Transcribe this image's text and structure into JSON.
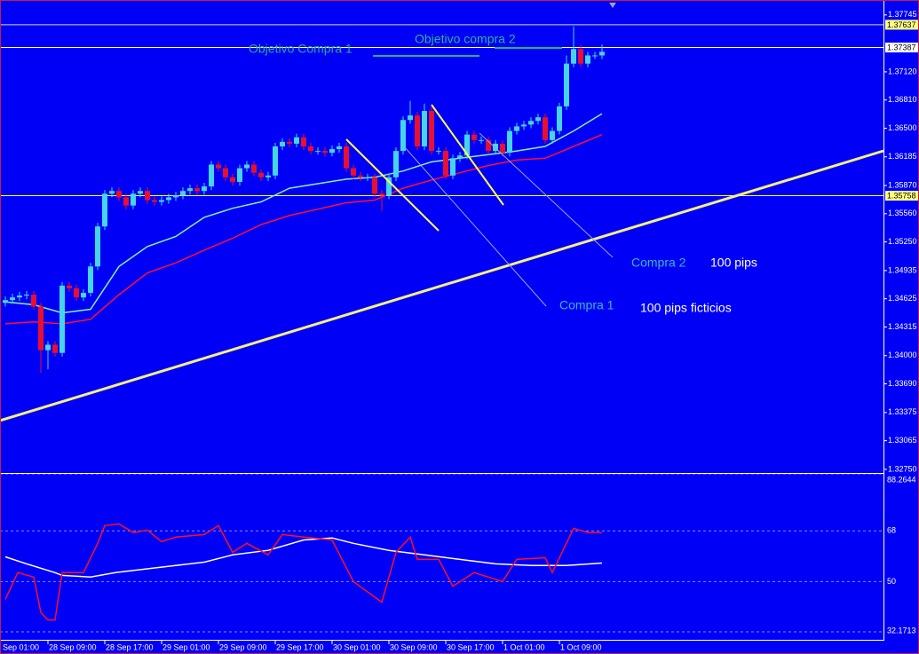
{
  "chart_data": [
    {
      "type": "candlestick",
      "xlim": [
        -0.75,
        123.625
      ],
      "ylim": [
        1.3272,
        1.3788
      ],
      "yticks": [
        1.37745,
        {
          "value": 1.3712,
          "label": "1.37120"
        },
        {
          "value": 1.3681,
          "label": "1.36810"
        },
        {
          "value": 1.365,
          "label": "1.36500"
        },
        1.36185,
        {
          "value": 1.3587,
          "label": "1.35870"
        },
        {
          "value": 1.3556,
          "label": "1.35560"
        },
        {
          "value": 1.3525,
          "label": "1.35250"
        },
        1.34935,
        1.34625,
        1.34315,
        {
          "value": 1.34,
          "label": "1.34000"
        },
        {
          "value": 1.3369,
          "label": "1.33690"
        },
        1.33375,
        1.33065,
        {
          "value": 1.3275,
          "label": "1.32750"
        }
      ],
      "xticks": [
        {
          "value": -2,
          "label": "Sep 01:00"
        },
        {
          "value": 6,
          "label": "28 Sep 09:00"
        },
        {
          "value": 14,
          "label": "28 Sep 17:00"
        },
        {
          "value": 22,
          "label": "29 Sep 01:00"
        },
        {
          "value": 30,
          "label": "29 Sep 09:00"
        },
        {
          "value": 38,
          "label": "29 Sep 17:00"
        },
        {
          "value": 46,
          "label": "30 Sep 01:00"
        },
        {
          "value": 54,
          "label": "30 Sep 09:00"
        },
        {
          "value": 62,
          "label": "30 Sep 17:00"
        },
        {
          "value": 70,
          "label": "1 Oct 01:00"
        },
        {
          "value": 78,
          "label": "1 Oct 09:00"
        }
      ],
      "up_color": "#46d4ec",
      "down_color": "#e8102e",
      "x": [
        0,
        1,
        2,
        3,
        4,
        5,
        6,
        7,
        8,
        9,
        10,
        11,
        12,
        13,
        14,
        15,
        16,
        17,
        18,
        19,
        20,
        21,
        22,
        23,
        24,
        25,
        26,
        27,
        28,
        29,
        30,
        31,
        32,
        33,
        34,
        35,
        36,
        37,
        38,
        39,
        40,
        41,
        42,
        43,
        44,
        45,
        46,
        47,
        48,
        49,
        50,
        51,
        52,
        53,
        54,
        55,
        56,
        57,
        58,
        59,
        60,
        61,
        62,
        63,
        64,
        65,
        66,
        67,
        68,
        69,
        70,
        71,
        72,
        73,
        74,
        75,
        76,
        77,
        78,
        79,
        80,
        81,
        82,
        83,
        84
      ],
      "open": [
        1.3458,
        1.3461,
        1.3464,
        1.3466,
        1.3467,
        1.3454,
        1.3406,
        1.3412,
        1.3403,
        1.3477,
        1.3474,
        1.3464,
        1.3469,
        1.3498,
        1.3542,
        1.3578,
        1.3581,
        1.3574,
        1.3565,
        1.3578,
        1.3581,
        1.3571,
        1.3569,
        1.3571,
        1.3574,
        1.3576,
        1.3581,
        1.3584,
        1.3581,
        1.3586,
        1.361,
        1.3606,
        1.3596,
        1.3591,
        1.3606,
        1.361,
        1.3601,
        1.3596,
        1.3598,
        1.363,
        1.3635,
        1.3633,
        1.364,
        1.363,
        1.3625,
        1.3625,
        1.3623,
        1.3627,
        1.363,
        1.3606,
        1.3598,
        1.3596,
        1.3596,
        1.3578,
        1.3576,
        1.3596,
        1.3625,
        1.3659,
        1.3664,
        1.363,
        1.3669,
        1.3625,
        1.3625,
        1.3598,
        1.3617,
        1.362,
        1.3643,
        1.3637,
        1.3637,
        1.3625,
        1.3633,
        1.3623,
        1.3647,
        1.3652,
        1.3654,
        1.3658,
        1.3662,
        1.3637,
        1.3647,
        1.3674,
        1.3721,
        1.3737,
        1.3721,
        1.373,
        1.373
      ],
      "high": [
        1.3465,
        1.3468,
        1.347,
        1.3471,
        1.3471,
        1.3458,
        1.3416,
        1.3416,
        1.3481,
        1.3481,
        1.3478,
        1.3473,
        1.3502,
        1.3546,
        1.3582,
        1.3585,
        1.3585,
        1.3578,
        1.3582,
        1.3585,
        1.3585,
        1.3575,
        1.3575,
        1.3578,
        1.358,
        1.3585,
        1.3588,
        1.3588,
        1.359,
        1.3614,
        1.3614,
        1.361,
        1.36,
        1.361,
        1.3614,
        1.3614,
        1.3605,
        1.3602,
        1.3634,
        1.3639,
        1.3639,
        1.3644,
        1.3644,
        1.3634,
        1.3629,
        1.3629,
        1.3631,
        1.3634,
        1.3634,
        1.361,
        1.3602,
        1.36,
        1.36,
        1.3582,
        1.36,
        1.3629,
        1.3663,
        1.368,
        1.3668,
        1.3677,
        1.3673,
        1.3629,
        1.3629,
        1.3621,
        1.3624,
        1.3647,
        1.3647,
        1.3641,
        1.3641,
        1.3637,
        1.3637,
        1.3651,
        1.3656,
        1.3658,
        1.3662,
        1.3666,
        1.3666,
        1.3651,
        1.3678,
        1.373,
        1.3762,
        1.3741,
        1.3734,
        1.3734,
        1.3742
      ],
      "low": [
        1.3454,
        1.3457,
        1.346,
        1.3462,
        1.345,
        1.3381,
        1.3385,
        1.3399,
        1.3399,
        1.347,
        1.346,
        1.346,
        1.3465,
        1.3494,
        1.3538,
        1.3574,
        1.357,
        1.3561,
        1.3561,
        1.3574,
        1.3567,
        1.3565,
        1.3565,
        1.3567,
        1.357,
        1.3572,
        1.3577,
        1.3577,
        1.3577,
        1.3582,
        1.3602,
        1.3592,
        1.3587,
        1.3587,
        1.3602,
        1.3597,
        1.3592,
        1.3592,
        1.3594,
        1.3626,
        1.3629,
        1.3629,
        1.3626,
        1.3621,
        1.3621,
        1.3619,
        1.3619,
        1.3623,
        1.3602,
        1.3594,
        1.3592,
        1.3592,
        1.3574,
        1.3559,
        1.3572,
        1.3592,
        1.3621,
        1.3655,
        1.3626,
        1.3626,
        1.3621,
        1.3621,
        1.3594,
        1.3594,
        1.3613,
        1.3616,
        1.3633,
        1.3633,
        1.3621,
        1.3621,
        1.3619,
        1.3619,
        1.3643,
        1.3648,
        1.365,
        1.3654,
        1.3633,
        1.3633,
        1.3643,
        1.367,
        1.3717,
        1.3717,
        1.3717,
        1.3726,
        1.3726
      ],
      "close": [
        1.3461,
        1.3464,
        1.3466,
        1.3467,
        1.3454,
        1.3406,
        1.3412,
        1.3403,
        1.3477,
        1.3474,
        1.3464,
        1.3469,
        1.3498,
        1.3542,
        1.3578,
        1.3581,
        1.3574,
        1.3565,
        1.3578,
        1.3581,
        1.3571,
        1.3569,
        1.3571,
        1.3574,
        1.3576,
        1.3581,
        1.3584,
        1.3581,
        1.3586,
        1.361,
        1.3606,
        1.3596,
        1.3591,
        1.3606,
        1.361,
        1.3601,
        1.3596,
        1.3598,
        1.363,
        1.3635,
        1.3633,
        1.364,
        1.363,
        1.3625,
        1.3625,
        1.3623,
        1.3627,
        1.363,
        1.3606,
        1.3598,
        1.3596,
        1.3596,
        1.3578,
        1.3576,
        1.3596,
        1.3625,
        1.3659,
        1.3664,
        1.363,
        1.3669,
        1.3625,
        1.3625,
        1.3598,
        1.3617,
        1.362,
        1.3643,
        1.3637,
        1.3637,
        1.3625,
        1.3633,
        1.3623,
        1.3647,
        1.3652,
        1.3654,
        1.3658,
        1.3662,
        1.3637,
        1.3647,
        1.3674,
        1.3721,
        1.3737,
        1.3721,
        1.373,
        1.373,
        1.3734
      ],
      "lines": [
        {
          "color": "#8cf0b4",
          "x": [
            0,
            4,
            8,
            12,
            16,
            20,
            24,
            28,
            32,
            36,
            40,
            44,
            48,
            52,
            56,
            60,
            64,
            68,
            72,
            76,
            80,
            84
          ],
          "values": [
            1.3459,
            1.3456,
            1.3447,
            1.3451,
            1.3498,
            1.352,
            1.3531,
            1.3552,
            1.3562,
            1.3569,
            1.3584,
            1.3589,
            1.3594,
            1.3596,
            1.3603,
            1.3613,
            1.3617,
            1.3621,
            1.3625,
            1.363,
            1.3647,
            1.3666
          ]
        },
        {
          "color": "#ff1030",
          "x": [
            0,
            4,
            8,
            12,
            16,
            20,
            24,
            28,
            32,
            36,
            40,
            44,
            48,
            52,
            56,
            60,
            64,
            68,
            72,
            76,
            80,
            84
          ],
          "values": [
            1.3435,
            1.3437,
            1.3435,
            1.344,
            1.3467,
            1.3491,
            1.3502,
            1.3516,
            1.3529,
            1.3544,
            1.3554,
            1.3561,
            1.3568,
            1.3571,
            1.3584,
            1.3593,
            1.3601,
            1.3609,
            1.3615,
            1.3617,
            1.363,
            1.3643
          ]
        }
      ],
      "price_lines": [
        {
          "value": 1.37637,
          "color": "#d8d8e8",
          "label_color": "#ffff80"
        },
        {
          "value": 1.37387,
          "color": "#ffffff",
          "label_color": "#ffffff"
        },
        {
          "value": 1.35758,
          "color": "#ffff40",
          "label_color": "#ffff80"
        }
      ],
      "annotations": [
        "Objetivo Compra 1",
        "Objetivo compra 2",
        "Compra 2",
        "100 pips",
        "Compra 1",
        "100 pips ficticios"
      ]
    },
    {
      "type": "line",
      "xlim": [
        -0.75,
        123.625
      ],
      "ylim": [
        32.1713,
        88.2644
      ],
      "yticks": [
        88.2644,
        68,
        50,
        32.1713
      ],
      "grid": true,
      "series": [
        {
          "color": "#ffffff",
          "x": [
            0,
            3,
            7,
            8,
            12,
            15.5,
            20.5,
            28,
            32,
            37,
            42,
            46,
            49,
            54,
            59,
            64,
            69,
            74,
            79,
            84
          ],
          "values": [
            58.8,
            56.3,
            53.2,
            52.2,
            51.6,
            53.2,
            54.7,
            56.9,
            59.5,
            61.1,
            64.8,
            65.5,
            63.6,
            61.1,
            59.5,
            57.9,
            56.3,
            55.7,
            55.7,
            56.6
          ]
        },
        {
          "color": "#ff1020",
          "x": [
            0,
            1.75,
            4,
            5,
            6,
            7,
            8,
            11,
            13,
            14,
            16,
            18,
            20,
            22,
            24,
            28,
            30,
            32,
            34,
            37,
            39,
            42,
            46,
            49,
            53,
            55,
            57,
            58,
            61,
            63,
            66,
            70,
            72,
            76,
            77,
            80,
            82,
            84
          ],
          "values": [
            43.7,
            53.2,
            51.6,
            39.0,
            36.4,
            36.4,
            53.2,
            53.2,
            63.6,
            69.9,
            70.5,
            67.4,
            68.3,
            64.2,
            65.8,
            66.7,
            69.9,
            60.4,
            63.6,
            59.5,
            66.7,
            65.8,
            64.8,
            50.0,
            42.7,
            60.4,
            65.8,
            57.9,
            57.9,
            48.4,
            53.2,
            50.0,
            57.9,
            58.5,
            53.2,
            68.9,
            67.4,
            67.4
          ]
        }
      ]
    }
  ]
}
